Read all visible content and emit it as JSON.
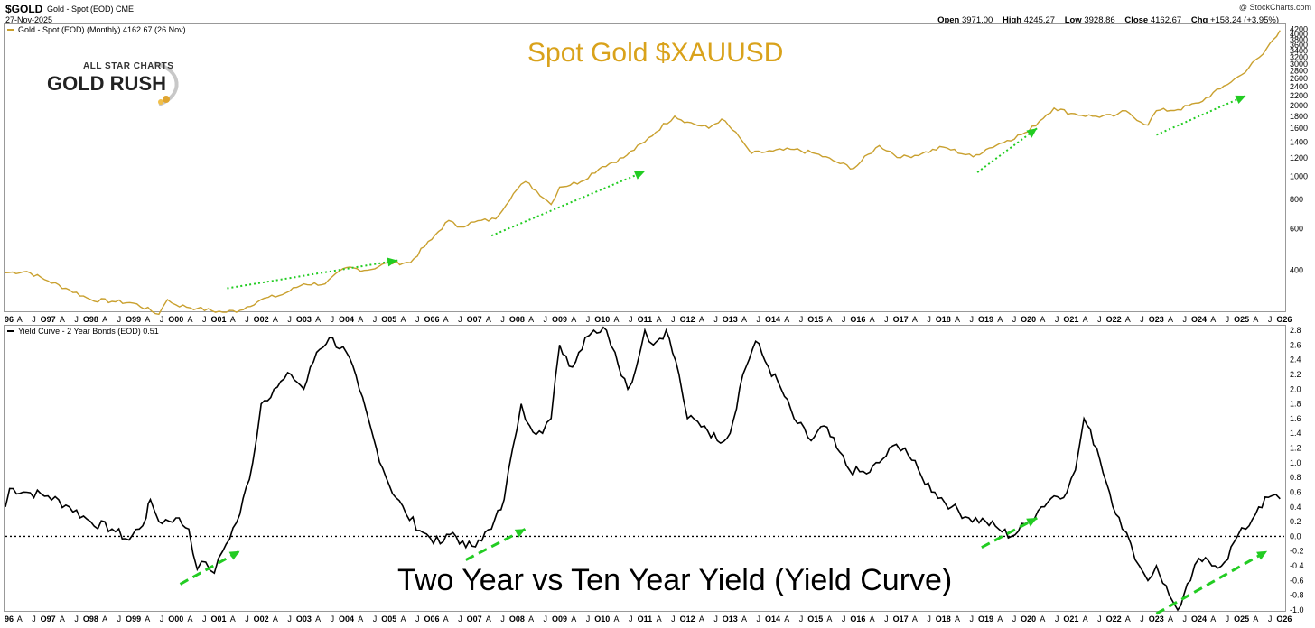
{
  "header": {
    "symbol": "$GOLD",
    "subtitle": "Gold - Spot (EOD) CME",
    "date": "27-Nov-2025",
    "credit": "@ StockCharts.com",
    "ohlc": [
      {
        "label": "Open",
        "value": "3971.00"
      },
      {
        "label": "High",
        "value": "4245.27"
      },
      {
        "label": "Low",
        "value": "3928.86"
      },
      {
        "label": "Close",
        "value": "4162.67"
      },
      {
        "label": "Chg",
        "value": "+158.24 (+3.95%)"
      }
    ]
  },
  "logo": {
    "line1": "ALL STAR CHARTS",
    "line2": "GOLD RUSH"
  },
  "colors": {
    "gold": "#c9a02e",
    "gold_title": "#d9a21b",
    "yield": "#000000",
    "arrow": "#22cc22"
  },
  "chart_data": [
    {
      "type": "line",
      "title": "Spot Gold $XAUUSD",
      "legend": "Gold - Spot (EOD) (Monthly) 4162.67 (26 Nov)",
      "scale": "log",
      "xlim": [
        1996.0,
        2026.0
      ],
      "ylim": [
        270,
        4300
      ],
      "yticks": [
        400,
        600,
        800,
        1000,
        1200,
        1400,
        1600,
        1800,
        2000,
        2200,
        2400,
        2600,
        2800,
        3000,
        3200,
        3400,
        3600,
        3800,
        4000,
        4200
      ],
      "series": [
        {
          "x": [
            1996.0,
            1996.5,
            1997.0,
            1997.5,
            1998.0,
            1998.5,
            1999.0,
            1999.6,
            1999.8,
            2000.0,
            2000.5,
            2001.1,
            2001.5,
            2002.0,
            2002.5,
            2003.0,
            2003.5,
            2004.0,
            2004.5,
            2005.0,
            2005.5,
            2006.0,
            2006.4,
            2006.6,
            2007.0,
            2007.5,
            2008.0,
            2008.2,
            2008.8,
            2009.0,
            2009.5,
            2010.0,
            2010.5,
            2011.0,
            2011.7,
            2012.0,
            2012.5,
            2012.8,
            2013.3,
            2013.5,
            2014.0,
            2014.5,
            2015.0,
            2015.5,
            2015.9,
            2016.5,
            2017.0,
            2017.5,
            2018.0,
            2018.7,
            2019.0,
            2019.5,
            2020.0,
            2020.6,
            2021.0,
            2021.5,
            2022.0,
            2022.2,
            2022.8,
            2023.0,
            2023.5,
            2024.0,
            2024.5,
            2025.0,
            2025.5,
            2025.9
          ],
          "y": [
            390,
            395,
            360,
            330,
            300,
            295,
            290,
            260,
            300,
            285,
            275,
            265,
            270,
            300,
            315,
            350,
            350,
            410,
            400,
            430,
            430,
            540,
            650,
            610,
            640,
            660,
            880,
            950,
            760,
            900,
            950,
            1100,
            1200,
            1400,
            1800,
            1700,
            1600,
            1750,
            1400,
            1250,
            1280,
            1300,
            1250,
            1150,
            1080,
            1350,
            1200,
            1250,
            1330,
            1210,
            1300,
            1420,
            1550,
            1950,
            1850,
            1800,
            1800,
            1900,
            1650,
            1900,
            1920,
            2050,
            2350,
            2700,
            3300,
            4162.67
          ]
        }
      ]
    },
    {
      "type": "line",
      "title": "Two Year vs Ten Year Yield (Yield Curve)",
      "legend": "Yield Curve - 2 Year Bonds (EOD) 0.51",
      "xlim": [
        1996.0,
        2026.0
      ],
      "ylim": [
        -1.0,
        2.8
      ],
      "yticks": [
        2.8,
        2.6,
        2.4,
        2.2,
        2.0,
        1.8,
        1.6,
        1.4,
        1.2,
        1.0,
        0.8,
        0.6,
        0.4,
        0.2,
        0.0,
        -0.2,
        -0.4,
        -0.6,
        -0.8,
        -1.0
      ],
      "reference_line": 0.0,
      "series": [
        {
          "x": [
            1996.0,
            1996.1,
            1996.5,
            1997.0,
            1997.5,
            1998.0,
            1998.5,
            1998.9,
            1999.3,
            1999.4,
            1999.6,
            2000.0,
            2000.3,
            2000.5,
            2000.7,
            2000.9,
            2001.1,
            2001.5,
            2001.8,
            2002.0,
            2002.3,
            2002.7,
            2003.0,
            2003.3,
            2003.6,
            2004.0,
            2004.3,
            2004.7,
            2005.0,
            2005.4,
            2005.8,
            2006.2,
            2006.5,
            2006.8,
            2007.1,
            2007.4,
            2007.7,
            2007.9,
            2008.1,
            2008.3,
            2008.6,
            2008.8,
            2009.0,
            2009.3,
            2009.6,
            2009.8,
            2010.1,
            2010.3,
            2010.6,
            2010.8,
            2011.0,
            2011.2,
            2011.5,
            2011.8,
            2012.0,
            2012.4,
            2012.7,
            2013.0,
            2013.3,
            2013.6,
            2013.9,
            2014.2,
            2014.5,
            2014.9,
            2015.2,
            2015.5,
            2015.8,
            2016.2,
            2016.5,
            2016.9,
            2017.1,
            2017.5,
            2017.8,
            2018.2,
            2018.6,
            2019.0,
            2019.3,
            2019.6,
            2020.0,
            2020.3,
            2020.6,
            2020.9,
            2021.1,
            2021.3,
            2021.6,
            2021.9,
            2022.2,
            2022.4,
            2022.6,
            2022.8,
            2023.0,
            2023.3,
            2023.5,
            2023.8,
            2024.0,
            2024.3,
            2024.6,
            2024.9,
            2025.1,
            2025.4,
            2025.7,
            2025.9
          ],
          "y": [
            0.4,
            0.65,
            0.6,
            0.55,
            0.4,
            0.2,
            0.1,
            -0.05,
            0.25,
            0.5,
            0.2,
            0.25,
            0.1,
            -0.45,
            -0.35,
            -0.5,
            -0.2,
            0.3,
            1.0,
            1.8,
            2.0,
            2.2,
            2.0,
            2.5,
            2.7,
            2.5,
            2.0,
            1.2,
            0.7,
            0.3,
            0.05,
            -0.1,
            0.05,
            -0.15,
            -0.05,
            0.1,
            0.5,
            1.2,
            1.8,
            1.5,
            1.4,
            1.6,
            2.6,
            2.3,
            2.7,
            2.8,
            2.8,
            2.5,
            2.0,
            2.3,
            2.8,
            2.6,
            2.8,
            2.2,
            1.6,
            1.5,
            1.3,
            1.4,
            2.2,
            2.65,
            2.3,
            2.0,
            1.6,
            1.3,
            1.5,
            1.2,
            0.9,
            0.85,
            1.0,
            1.25,
            1.2,
            0.8,
            0.6,
            0.4,
            0.25,
            0.2,
            0.1,
            0.0,
            0.2,
            0.4,
            0.55,
            0.6,
            0.9,
            1.6,
            1.2,
            0.6,
            0.1,
            -0.1,
            -0.4,
            -0.6,
            -0.4,
            -0.8,
            -1.0,
            -0.6,
            -0.3,
            -0.4,
            -0.35,
            0.0,
            0.1,
            0.4,
            0.55,
            0.51
          ]
        }
      ]
    }
  ],
  "x_axis_labels": [
    "96",
    "A",
    "J",
    "O97",
    "A",
    "J",
    "O98",
    "A",
    "J",
    "O99",
    "A",
    "J",
    "O00",
    "A",
    "J",
    "O01",
    "A",
    "J",
    "O02",
    "A",
    "J",
    "O03",
    "A",
    "J",
    "O04",
    "A",
    "J",
    "O05",
    "A",
    "J",
    "O06",
    "A",
    "J",
    "O07",
    "A",
    "J",
    "O08",
    "A",
    "J",
    "O09",
    "A",
    "J",
    "O10",
    "A",
    "J",
    "O11",
    "A",
    "J",
    "O12",
    "A",
    "J",
    "O13",
    "A",
    "J",
    "O14",
    "A",
    "J",
    "O15",
    "A",
    "J",
    "O16",
    "A",
    "J",
    "O17",
    "A",
    "J",
    "O18",
    "A",
    "J",
    "O19",
    "A",
    "J",
    "O20",
    "A",
    "J",
    "O21",
    "A",
    "J",
    "O22",
    "A",
    "J",
    "O23",
    "A",
    "J",
    "O24",
    "A",
    "J",
    "O25",
    "A",
    "J",
    "O26"
  ],
  "arrows": {
    "gold_panel": [
      [
        2001.2,
        2005.2
      ],
      [
        2007.4,
        2011.0
      ],
      [
        2018.8,
        2020.2
      ],
      [
        2023.0,
        2025.1
      ]
    ],
    "yield_panel": [
      [
        2000.1,
        2001.5
      ],
      [
        2006.8,
        2008.2
      ],
      [
        2018.9,
        2020.2
      ],
      [
        2023.0,
        2025.6
      ]
    ]
  }
}
